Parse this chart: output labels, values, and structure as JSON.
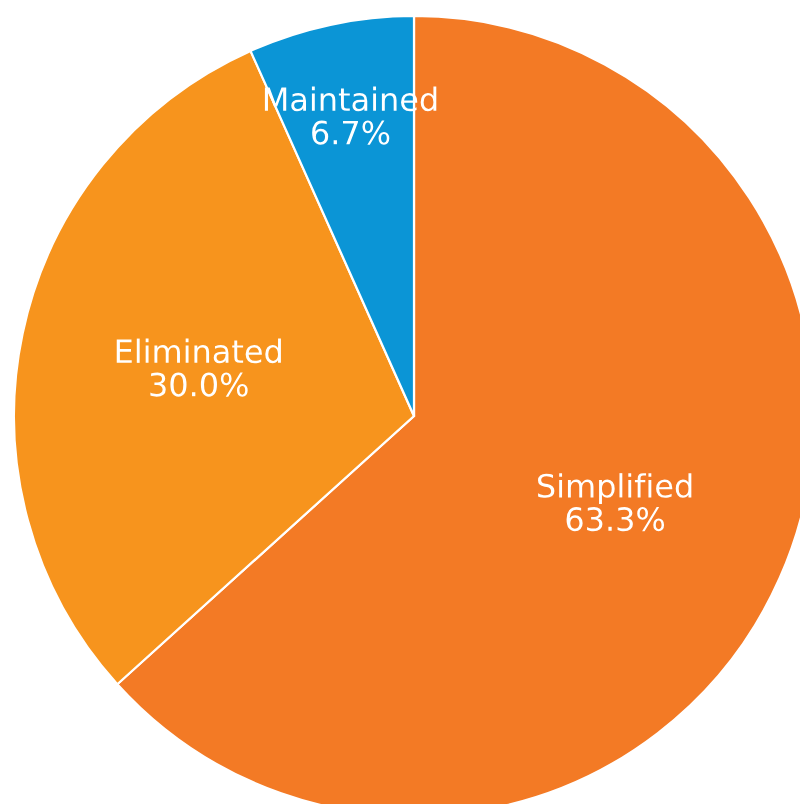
{
  "chart_data": {
    "type": "pie",
    "categories": [
      "Simplified",
      "Eliminated",
      "Maintained"
    ],
    "values": [
      63.3,
      30.0,
      6.7
    ],
    "value_labels": [
      "63.3%",
      "30.0%",
      "6.7%"
    ],
    "colors": [
      "#f37a25",
      "#f7941d",
      "#0b95d6"
    ]
  }
}
